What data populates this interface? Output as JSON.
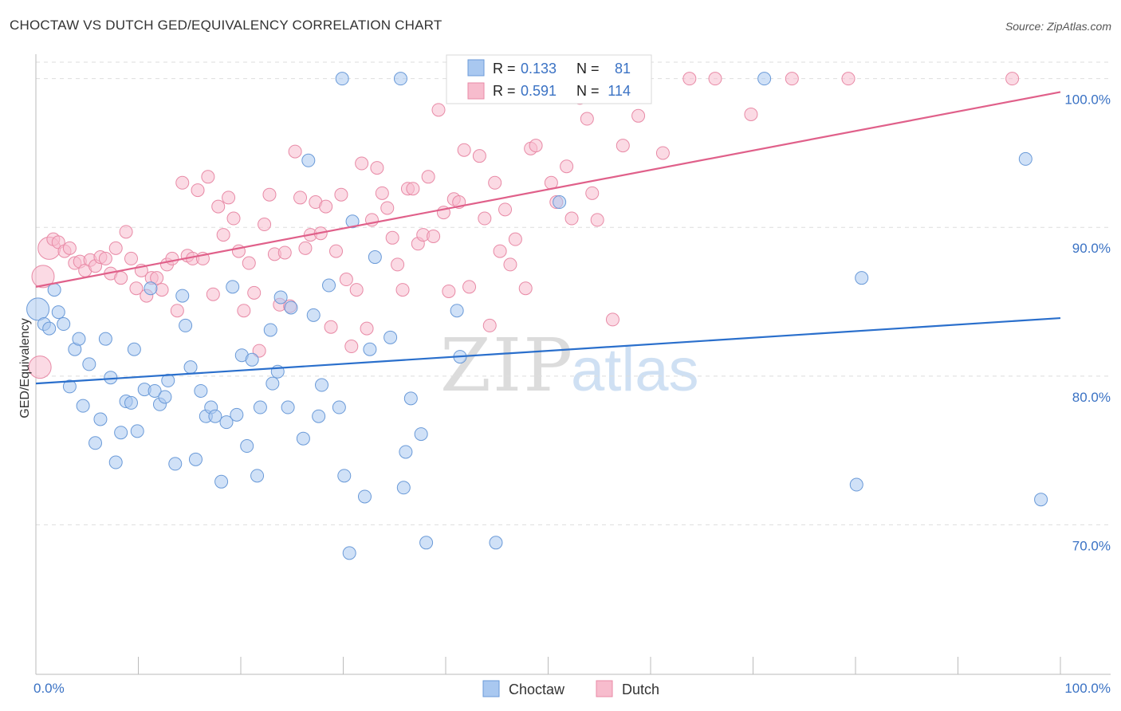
{
  "title": "CHOCTAW VS DUTCH GED/EQUIVALENCY CORRELATION CHART",
  "source": "Source: ZipAtlas.com",
  "watermark": {
    "zip": "ZIP",
    "atlas": "atlas"
  },
  "legend": {
    "rows": [
      {
        "r_label": "R = ",
        "r_value": "0.133",
        "n_label": "N = ",
        "n_value": "81"
      },
      {
        "r_label": "R = ",
        "r_value": "0.591",
        "n_label": "N = ",
        "n_value": "114"
      }
    ]
  },
  "bottom_legend": [
    "Choctaw",
    "Dutch"
  ],
  "colors": {
    "choctaw_fill": "#a9c8f0",
    "choctaw_stroke": "#6a9ad8",
    "choctaw_line": "#2a6fcc",
    "dutch_fill": "#f7bccd",
    "dutch_stroke": "#e88aa6",
    "dutch_line": "#e0608a",
    "value_blue": "#3a72c4"
  },
  "chart_data": {
    "type": "scatter",
    "title": "CHOCTAW VS DUTCH GED/EQUIVALENCY CORRELATION CHART",
    "xlabel": "",
    "ylabel": "GED/Equivalency",
    "xlim": [
      0,
      100
    ],
    "ylim": [
      60,
      101
    ],
    "x_tick_labels": [
      "0.0%",
      "100.0%"
    ],
    "y_ticks": [
      70,
      80,
      90,
      100
    ],
    "y_tick_labels": [
      "70.0%",
      "80.0%",
      "90.0%",
      "100.0%"
    ],
    "grid": true,
    "legend_position": "top-center",
    "series": [
      {
        "name": "Choctaw",
        "r": 0.133,
        "n": 81,
        "trend": {
          "x": [
            0,
            100
          ],
          "y": [
            79.5,
            83.9
          ]
        },
        "points": [
          [
            0.2,
            84.5
          ],
          [
            0.8,
            83.5
          ],
          [
            1.3,
            83.2
          ],
          [
            1.8,
            85.8
          ],
          [
            2.2,
            84.3
          ],
          [
            2.7,
            83.5
          ],
          [
            3.3,
            79.3
          ],
          [
            3.8,
            81.8
          ],
          [
            4.2,
            82.5
          ],
          [
            4.6,
            78.0
          ],
          [
            5.2,
            80.8
          ],
          [
            5.8,
            75.5
          ],
          [
            6.3,
            77.1
          ],
          [
            6.8,
            82.5
          ],
          [
            7.3,
            79.9
          ],
          [
            7.8,
            74.2
          ],
          [
            8.3,
            76.2
          ],
          [
            8.8,
            78.3
          ],
          [
            9.3,
            78.2
          ],
          [
            9.6,
            81.8
          ],
          [
            9.9,
            76.3
          ],
          [
            10.6,
            79.1
          ],
          [
            11.2,
            85.9
          ],
          [
            11.6,
            79.0
          ],
          [
            12.1,
            78.1
          ],
          [
            12.6,
            78.6
          ],
          [
            12.9,
            79.7
          ],
          [
            13.6,
            74.1
          ],
          [
            14.3,
            85.4
          ],
          [
            14.6,
            83.4
          ],
          [
            15.1,
            80.6
          ],
          [
            15.6,
            74.4
          ],
          [
            16.1,
            79.0
          ],
          [
            16.6,
            77.3
          ],
          [
            17.1,
            77.9
          ],
          [
            17.5,
            77.3
          ],
          [
            18.1,
            72.9
          ],
          [
            18.6,
            76.9
          ],
          [
            19.2,
            86.0
          ],
          [
            19.6,
            77.4
          ],
          [
            20.1,
            81.4
          ],
          [
            20.6,
            75.3
          ],
          [
            21.1,
            81.1
          ],
          [
            21.6,
            73.3
          ],
          [
            21.9,
            77.9
          ],
          [
            22.9,
            83.1
          ],
          [
            23.1,
            79.5
          ],
          [
            23.6,
            80.3
          ],
          [
            23.9,
            85.3
          ],
          [
            24.6,
            77.9
          ],
          [
            24.9,
            84.6
          ],
          [
            26.1,
            75.8
          ],
          [
            26.6,
            94.5
          ],
          [
            27.1,
            84.1
          ],
          [
            27.6,
            77.3
          ],
          [
            27.9,
            79.4
          ],
          [
            28.6,
            86.1
          ],
          [
            29.6,
            77.9
          ],
          [
            29.9,
            100.0
          ],
          [
            30.1,
            73.3
          ],
          [
            30.6,
            68.1
          ],
          [
            30.9,
            90.4
          ],
          [
            32.1,
            71.9
          ],
          [
            32.6,
            81.8
          ],
          [
            33.1,
            88.0
          ],
          [
            34.6,
            82.6
          ],
          [
            35.6,
            100.0
          ],
          [
            35.9,
            72.5
          ],
          [
            36.1,
            74.9
          ],
          [
            36.6,
            78.5
          ],
          [
            37.6,
            76.1
          ],
          [
            38.1,
            68.8
          ],
          [
            41.1,
            84.4
          ],
          [
            41.4,
            81.3
          ],
          [
            44.9,
            68.8
          ],
          [
            51.1,
            91.7
          ],
          [
            71.1,
            100.0
          ],
          [
            80.1,
            72.7
          ],
          [
            80.6,
            86.6
          ],
          [
            96.6,
            94.6
          ],
          [
            98.1,
            71.7
          ]
        ]
      },
      {
        "name": "Dutch",
        "r": 0.591,
        "n": 114,
        "trend": {
          "x": [
            0,
            100
          ],
          "y": [
            86.0,
            99.1
          ]
        },
        "points": [
          [
            0.4,
            80.6
          ],
          [
            0.7,
            86.7
          ],
          [
            1.3,
            88.6
          ],
          [
            1.7,
            89.2
          ],
          [
            2.2,
            89.0
          ],
          [
            2.8,
            88.4
          ],
          [
            3.3,
            88.6
          ],
          [
            3.8,
            87.6
          ],
          [
            4.3,
            87.7
          ],
          [
            4.8,
            87.1
          ],
          [
            5.3,
            87.8
          ],
          [
            5.8,
            87.4
          ],
          [
            6.3,
            88.0
          ],
          [
            6.8,
            87.9
          ],
          [
            7.3,
            86.9
          ],
          [
            7.8,
            88.6
          ],
          [
            8.3,
            86.6
          ],
          [
            8.8,
            89.7
          ],
          [
            9.3,
            87.9
          ],
          [
            9.8,
            85.9
          ],
          [
            10.3,
            87.1
          ],
          [
            10.8,
            85.4
          ],
          [
            11.3,
            86.6
          ],
          [
            11.8,
            86.6
          ],
          [
            12.3,
            85.8
          ],
          [
            12.8,
            87.5
          ],
          [
            13.3,
            87.9
          ],
          [
            13.8,
            84.4
          ],
          [
            14.3,
            93.0
          ],
          [
            14.8,
            88.1
          ],
          [
            15.3,
            87.9
          ],
          [
            15.8,
            92.5
          ],
          [
            16.3,
            87.9
          ],
          [
            16.8,
            93.4
          ],
          [
            17.3,
            85.5
          ],
          [
            17.8,
            91.4
          ],
          [
            18.3,
            89.5
          ],
          [
            18.8,
            92.0
          ],
          [
            19.3,
            90.6
          ],
          [
            19.8,
            88.4
          ],
          [
            20.3,
            84.4
          ],
          [
            20.8,
            87.6
          ],
          [
            21.3,
            85.6
          ],
          [
            21.8,
            81.7
          ],
          [
            22.3,
            90.2
          ],
          [
            22.8,
            92.2
          ],
          [
            23.3,
            88.2
          ],
          [
            23.8,
            84.8
          ],
          [
            24.3,
            88.3
          ],
          [
            24.8,
            84.7
          ],
          [
            25.3,
            95.1
          ],
          [
            25.8,
            92.0
          ],
          [
            26.3,
            88.6
          ],
          [
            26.8,
            89.5
          ],
          [
            27.3,
            91.7
          ],
          [
            27.8,
            89.6
          ],
          [
            28.3,
            91.4
          ],
          [
            28.8,
            83.3
          ],
          [
            29.3,
            88.4
          ],
          [
            29.8,
            92.2
          ],
          [
            30.3,
            86.5
          ],
          [
            30.8,
            82.0
          ],
          [
            31.3,
            85.8
          ],
          [
            31.8,
            94.3
          ],
          [
            32.3,
            83.2
          ],
          [
            32.8,
            90.5
          ],
          [
            33.3,
            94.0
          ],
          [
            33.8,
            92.3
          ],
          [
            34.3,
            91.3
          ],
          [
            34.8,
            89.3
          ],
          [
            35.3,
            87.5
          ],
          [
            35.8,
            85.8
          ],
          [
            36.3,
            92.6
          ],
          [
            36.8,
            92.6
          ],
          [
            37.3,
            88.9
          ],
          [
            37.8,
            89.5
          ],
          [
            38.3,
            93.4
          ],
          [
            38.8,
            89.4
          ],
          [
            39.3,
            97.9
          ],
          [
            39.8,
            91.0
          ],
          [
            40.3,
            85.7
          ],
          [
            40.8,
            91.9
          ],
          [
            41.3,
            91.7
          ],
          [
            41.8,
            95.2
          ],
          [
            42.3,
            86.0
          ],
          [
            43.3,
            94.8
          ],
          [
            43.8,
            90.6
          ],
          [
            44.3,
            83.4
          ],
          [
            44.8,
            93.0
          ],
          [
            45.3,
            88.4
          ],
          [
            45.8,
            91.2
          ],
          [
            46.3,
            87.5
          ],
          [
            46.8,
            89.2
          ],
          [
            47.8,
            85.9
          ],
          [
            48.3,
            95.3
          ],
          [
            48.8,
            95.5
          ],
          [
            50.3,
            93.0
          ],
          [
            50.8,
            91.7
          ],
          [
            51.8,
            94.1
          ],
          [
            52.3,
            90.6
          ],
          [
            53.1,
            98.7
          ],
          [
            53.8,
            97.3
          ],
          [
            54.3,
            92.3
          ],
          [
            54.8,
            90.5
          ],
          [
            56.3,
            83.8
          ],
          [
            57.3,
            95.5
          ],
          [
            58.8,
            97.5
          ],
          [
            61.2,
            95.0
          ],
          [
            63.8,
            100.0
          ],
          [
            66.3,
            100.0
          ],
          [
            69.8,
            97.6
          ],
          [
            73.8,
            100.0
          ],
          [
            79.3,
            100.0
          ],
          [
            95.3,
            100.0
          ]
        ]
      }
    ]
  }
}
